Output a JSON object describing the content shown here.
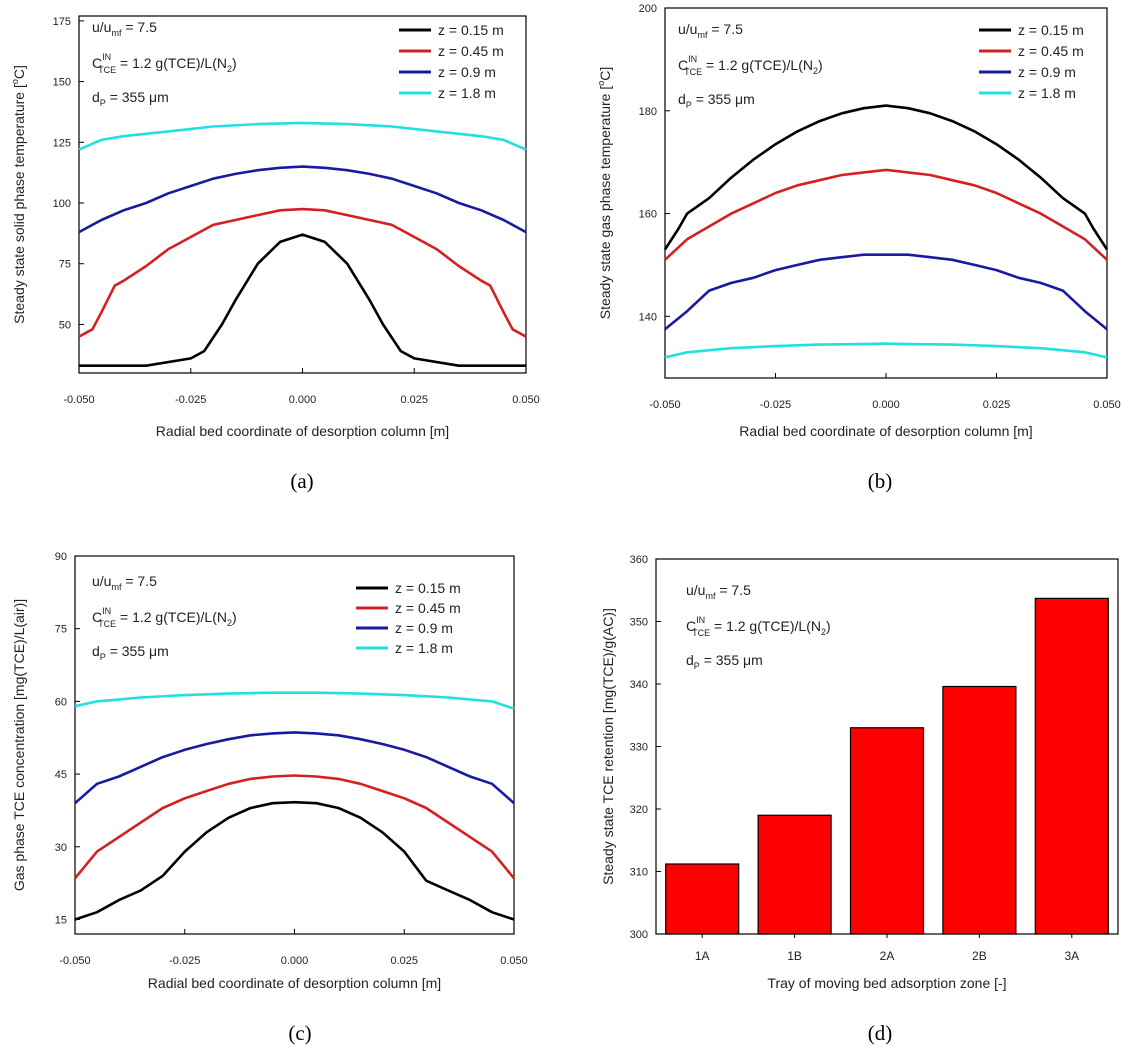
{
  "figure": {
    "annotation": {
      "l1_main": "u/u",
      "l1_sub": "mf",
      "l1_tail": " = 7.5",
      "l2_main": "C",
      "l2_sup": "IN",
      "l2_sub": "TCE",
      "l2_tail_a": " = 1.2 g(TCE)/L(N",
      "l2_tail_sub": "2",
      "l2_tail_b": ")",
      "l3_main": "d",
      "l3_sub": "P",
      "l3_tail": " = 355 μm"
    }
  },
  "colors": {
    "z015": "#000000",
    "z045": "#d42020",
    "z09": "#1a1aa0",
    "z18": "#22e0e0",
    "bar_fill": "#ff0000",
    "bar_edge": "#000000"
  },
  "chart_data": [
    {
      "id": "a",
      "type": "line",
      "caption": "(a)",
      "xlabel": "Radial bed coordinate of desorption column [m]",
      "ylabel": "Steady state solid phase temperature [°C]",
      "ylabel_unit_sup": "o",
      "xlim": [
        -0.05,
        0.05
      ],
      "ylim": [
        30,
        177
      ],
      "xticks": [
        -0.05,
        -0.025,
        0,
        0.025,
        0.05
      ],
      "xtick_labels": [
        "-0.050",
        "-0.025",
        "0.000",
        "0.025",
        "0.050"
      ],
      "yticks": [
        50,
        75,
        100,
        125,
        150,
        175
      ],
      "ytick_labels": [
        "50",
        "75",
        "100",
        "125",
        "150",
        "175"
      ],
      "legend_position": "top-right",
      "series": [
        {
          "name": "z = 0.15 m",
          "color_key": "z015",
          "x": [
            -0.05,
            -0.035,
            -0.025,
            -0.022,
            -0.018,
            -0.015,
            -0.01,
            -0.005,
            0,
            0.005,
            0.01,
            0.015,
            0.018,
            0.022,
            0.025,
            0.035,
            0.05
          ],
          "y": [
            33,
            33,
            36,
            39,
            50,
            60,
            75,
            84,
            87,
            84,
            75,
            60,
            50,
            39,
            36,
            33,
            33
          ]
        },
        {
          "name": "z = 0.45 m",
          "color_key": "z045",
          "x": [
            -0.05,
            -0.047,
            -0.045,
            -0.042,
            -0.04,
            -0.035,
            -0.03,
            -0.025,
            -0.02,
            -0.015,
            -0.01,
            -0.005,
            0,
            0.005,
            0.01,
            0.015,
            0.02,
            0.025,
            0.03,
            0.035,
            0.04,
            0.042,
            0.045,
            0.047,
            0.05
          ],
          "y": [
            45,
            48,
            55,
            66,
            68,
            74,
            81,
            86,
            91,
            93,
            95,
            97,
            97.5,
            97,
            95,
            93,
            91,
            86,
            81,
            74,
            68,
            66,
            55,
            48,
            45
          ]
        },
        {
          "name": "z = 0.9 m",
          "color_key": "z09",
          "x": [
            -0.05,
            -0.045,
            -0.04,
            -0.035,
            -0.03,
            -0.025,
            -0.02,
            -0.015,
            -0.01,
            -0.005,
            0,
            0.005,
            0.01,
            0.015,
            0.02,
            0.025,
            0.03,
            0.035,
            0.04,
            0.045,
            0.05
          ],
          "y": [
            88,
            93,
            97,
            100,
            104,
            107,
            110,
            112,
            113.5,
            114.5,
            115,
            114.5,
            113.5,
            112,
            110,
            107,
            104,
            100,
            97,
            93,
            88
          ]
        },
        {
          "name": "z = 1.8 m",
          "color_key": "z18",
          "x": [
            -0.05,
            -0.045,
            -0.04,
            -0.03,
            -0.02,
            -0.01,
            0,
            0.01,
            0.02,
            0.03,
            0.04,
            0.045,
            0.05
          ],
          "y": [
            122,
            126,
            127.5,
            129.5,
            131.5,
            132.5,
            133,
            132.5,
            131.5,
            129.5,
            127.5,
            126,
            122
          ]
        }
      ]
    },
    {
      "id": "b",
      "type": "line",
      "caption": "(b)",
      "xlabel": "Radial bed coordinate of desorption column [m]",
      "ylabel": "Steady state gas phase temperature [°C]",
      "ylabel_unit_sup": "o",
      "xlim": [
        -0.05,
        0.05
      ],
      "ylim": [
        128,
        200
      ],
      "xticks": [
        -0.05,
        -0.025,
        0,
        0.025,
        0.05
      ],
      "xtick_labels": [
        "-0.050",
        "-0.025",
        "0.000",
        "0.025",
        "0.050"
      ],
      "yticks": [
        140,
        160,
        180,
        200
      ],
      "ytick_labels": [
        "140",
        "160",
        "180",
        "200"
      ],
      "legend_position": "top-right",
      "series": [
        {
          "name": "z = 0.15 m",
          "color_key": "z015",
          "x": [
            -0.05,
            -0.047,
            -0.045,
            -0.04,
            -0.035,
            -0.03,
            -0.025,
            -0.02,
            -0.015,
            -0.01,
            -0.005,
            0,
            0.005,
            0.01,
            0.015,
            0.02,
            0.025,
            0.03,
            0.035,
            0.04,
            0.045,
            0.047,
            0.05
          ],
          "y": [
            153,
            157,
            160,
            163,
            167,
            170.5,
            173.5,
            176,
            178,
            179.5,
            180.5,
            181,
            180.5,
            179.5,
            178,
            176,
            173.5,
            170.5,
            167,
            163,
            160,
            157,
            153
          ]
        },
        {
          "name": "z = 0.45 m",
          "color_key": "z045",
          "x": [
            -0.05,
            -0.045,
            -0.04,
            -0.035,
            -0.03,
            -0.025,
            -0.02,
            -0.015,
            -0.01,
            -0.005,
            0,
            0.005,
            0.01,
            0.015,
            0.02,
            0.025,
            0.03,
            0.035,
            0.04,
            0.045,
            0.05
          ],
          "y": [
            151,
            155,
            157.5,
            160,
            162,
            164,
            165.5,
            166.5,
            167.5,
            168,
            168.5,
            168,
            167.5,
            166.5,
            165.5,
            164,
            162,
            160,
            157.5,
            155,
            151
          ]
        },
        {
          "name": "z = 0.9 m",
          "color_key": "z09",
          "x": [
            -0.05,
            -0.045,
            -0.04,
            -0.035,
            -0.03,
            -0.025,
            -0.02,
            -0.015,
            -0.01,
            -0.005,
            0,
            0.005,
            0.01,
            0.015,
            0.02,
            0.025,
            0.03,
            0.035,
            0.04,
            0.045,
            0.05
          ],
          "y": [
            137.5,
            141,
            145,
            146.5,
            147.5,
            149,
            150,
            151,
            151.5,
            152,
            152,
            152,
            151.5,
            151,
            150,
            149,
            147.5,
            146.5,
            145,
            141,
            137.5
          ]
        },
        {
          "name": "z = 1.8 m",
          "color_key": "z18",
          "x": [
            -0.05,
            -0.045,
            -0.035,
            -0.025,
            -0.015,
            -0.005,
            0,
            0.005,
            0.015,
            0.025,
            0.035,
            0.045,
            0.05
          ],
          "y": [
            132,
            133,
            133.8,
            134.2,
            134.5,
            134.6,
            134.7,
            134.6,
            134.5,
            134.2,
            133.8,
            133,
            132
          ]
        }
      ]
    },
    {
      "id": "c",
      "type": "line",
      "caption": "(c)",
      "xlabel": "Radial bed coordinate of desorption column [m]",
      "ylabel": "Gas phase TCE concentration [mg(TCE)/L(air)]",
      "xlim": [
        -0.05,
        0.05
      ],
      "ylim": [
        12,
        90
      ],
      "xticks": [
        -0.05,
        -0.025,
        0,
        0.025,
        0.05
      ],
      "xtick_labels": [
        "-0.050",
        "-0.025",
        "0.000",
        "0.025",
        "0.050"
      ],
      "yticks": [
        15,
        30,
        45,
        60,
        75,
        90
      ],
      "ytick_labels": [
        "15",
        "30",
        "45",
        "60",
        "75",
        "90"
      ],
      "legend_position": "top-right",
      "series": [
        {
          "name": "z = 0.15 m",
          "color_key": "z015",
          "x": [
            -0.05,
            -0.045,
            -0.04,
            -0.035,
            -0.03,
            -0.025,
            -0.02,
            -0.015,
            -0.01,
            -0.005,
            0,
            0.005,
            0.01,
            0.015,
            0.02,
            0.025,
            0.03,
            0.035,
            0.04,
            0.045,
            0.05
          ],
          "y": [
            15,
            16.5,
            19,
            21,
            24,
            29,
            33,
            36,
            38,
            39,
            39.2,
            39,
            38,
            36,
            33,
            29,
            23,
            21,
            19,
            16.5,
            15
          ]
        },
        {
          "name": "z = 0.45 m",
          "color_key": "z045",
          "x": [
            -0.05,
            -0.045,
            -0.04,
            -0.035,
            -0.03,
            -0.025,
            -0.02,
            -0.015,
            -0.01,
            -0.005,
            0,
            0.005,
            0.01,
            0.015,
            0.02,
            0.025,
            0.03,
            0.035,
            0.04,
            0.045,
            0.05
          ],
          "y": [
            23.5,
            29,
            32,
            35,
            38,
            40,
            41.5,
            43,
            44,
            44.5,
            44.7,
            44.5,
            44,
            43,
            41.5,
            40,
            38,
            35,
            32,
            29,
            23.5
          ]
        },
        {
          "name": "z = 0.9 m",
          "color_key": "z09",
          "x": [
            -0.05,
            -0.045,
            -0.04,
            -0.035,
            -0.03,
            -0.025,
            -0.02,
            -0.015,
            -0.01,
            -0.005,
            0,
            0.005,
            0.01,
            0.015,
            0.02,
            0.025,
            0.03,
            0.035,
            0.04,
            0.045,
            0.05
          ],
          "y": [
            39,
            43,
            44.5,
            46.5,
            48.5,
            50,
            51.2,
            52.2,
            53,
            53.4,
            53.6,
            53.4,
            53,
            52.2,
            51.2,
            50,
            48.5,
            46.5,
            44.5,
            43,
            39
          ]
        },
        {
          "name": "z = 1.8 m",
          "color_key": "z18",
          "x": [
            -0.05,
            -0.045,
            -0.035,
            -0.025,
            -0.015,
            -0.005,
            0,
            0.005,
            0.015,
            0.025,
            0.035,
            0.045,
            0.05
          ],
          "y": [
            59,
            60,
            60.8,
            61.3,
            61.6,
            61.8,
            61.8,
            61.8,
            61.6,
            61.3,
            60.8,
            60,
            58.5
          ]
        }
      ]
    },
    {
      "id": "d",
      "type": "bar",
      "caption": "(d)",
      "xlabel": "Tray of moving bed adsorption zone [-]",
      "ylabel": "Steady state TCE retention [mg(TCE)/g(AC)]",
      "categories": [
        "1A",
        "1B",
        "2A",
        "2B",
        "3A"
      ],
      "values": [
        311.2,
        319,
        333,
        339.6,
        353.7
      ],
      "ylim": [
        300,
        360
      ],
      "yticks": [
        300,
        310,
        320,
        330,
        340,
        350,
        360
      ],
      "ytick_labels": [
        "300",
        "310",
        "320",
        "330",
        "340",
        "350",
        "360"
      ]
    }
  ]
}
